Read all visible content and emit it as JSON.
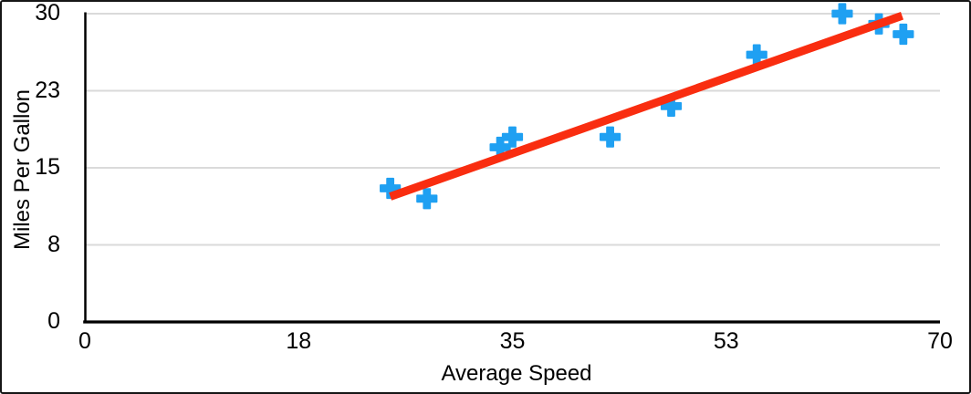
{
  "figure": {
    "background": "#ffffff",
    "frame_color": "#161616"
  },
  "chart_data": {
    "type": "scatter",
    "title": "",
    "xlabel": "Average Speed",
    "ylabel": "Miles Per Gallon",
    "xlim": [
      0,
      70
    ],
    "ylim": [
      0,
      30
    ],
    "grid": "horizontal",
    "legend": "none",
    "x_ticks": {
      "values": [
        0,
        17.5,
        35,
        52.5,
        70
      ],
      "labels": [
        "0",
        "18",
        "35",
        "53",
        "70"
      ]
    },
    "y_ticks": {
      "values": [
        0,
        7.5,
        15,
        22.5,
        30
      ],
      "labels": [
        "0",
        "8",
        "15",
        "23",
        "30"
      ]
    },
    "series": [
      {
        "name": "Miles Per Gallon",
        "marker": "plus",
        "color": "#1FA0F2",
        "points": [
          [
            25,
            13
          ],
          [
            28,
            12
          ],
          [
            34,
            17
          ],
          [
            35,
            18
          ],
          [
            43,
            18
          ],
          [
            48,
            21
          ],
          [
            55,
            26
          ],
          [
            62,
            30
          ],
          [
            65,
            29
          ],
          [
            67,
            28
          ]
        ]
      }
    ],
    "trendline": {
      "type": "linear",
      "color": "#F92D10",
      "from": [
        25.0,
        12.2
      ],
      "to": [
        66.9,
        29.8
      ],
      "stroke_width": 9
    },
    "colors": {
      "gridline": "#DADADA",
      "axis": "#000000",
      "text": "#000000"
    }
  }
}
